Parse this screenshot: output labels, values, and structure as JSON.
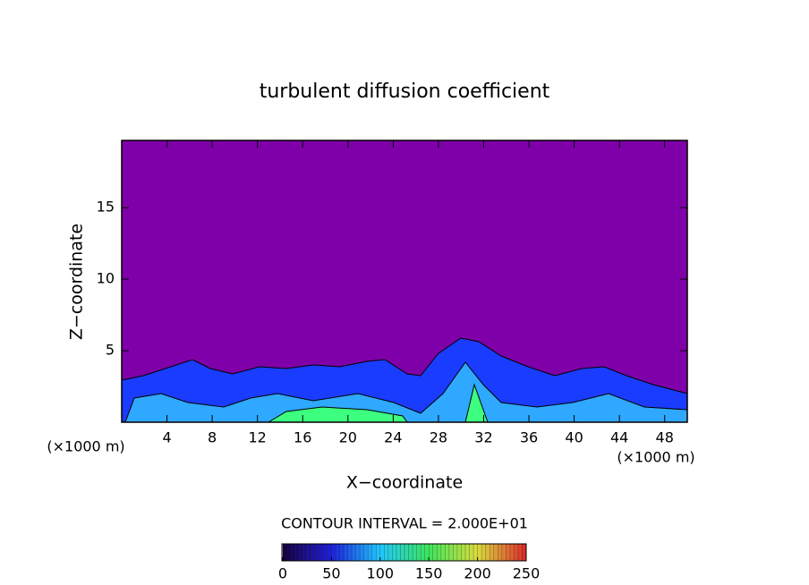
{
  "chart_data": {
    "type": "contour",
    "title": "turbulent diffusion coefficient",
    "x_label": "X−coordinate",
    "y_label": "Z−coordinate",
    "x_unit_label": "(×1000 m)",
    "contour_interval_label": "CONTOUR INTERVAL = 2.000E+01",
    "xlim": [
      0,
      50
    ],
    "xticks": [
      4,
      8,
      12,
      16,
      20,
      24,
      28,
      32,
      36,
      40,
      44,
      48
    ],
    "ylim": [
      0,
      19.7
    ],
    "yticks": [
      5,
      10,
      15
    ],
    "background_color": "#7f00a8",
    "colorbar": {
      "lim": [
        0,
        250
      ],
      "ticks": [
        0,
        50,
        100,
        150,
        200,
        250
      ]
    }
  }
}
